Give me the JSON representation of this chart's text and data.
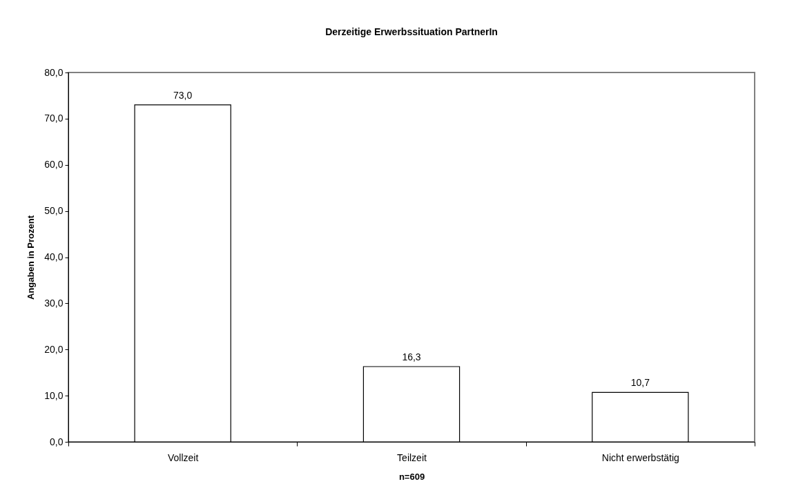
{
  "chart_data": {
    "type": "bar",
    "title": "Derzeitige Erwerbssituation PartnerIn",
    "xlabel": "n=609",
    "ylabel": "Angaben in Prozent",
    "categories": [
      "Vollzeit",
      "Teilzeit",
      "Nicht erwerbstätig"
    ],
    "values": [
      73.0,
      16.3,
      10.7
    ],
    "color": "#ffffff",
    "value_labels": [
      "73,0",
      "16,3",
      "10,7"
    ],
    "ylim": [
      0,
      80
    ],
    "yticks": [
      {
        "value": 0,
        "label": "0,0"
      },
      {
        "value": 10,
        "label": "10,0"
      },
      {
        "value": 20,
        "label": "20,0"
      },
      {
        "value": 30,
        "label": "30,0"
      },
      {
        "value": 40,
        "label": "40,0"
      },
      {
        "value": 50,
        "label": "50,0"
      },
      {
        "value": 60,
        "label": "60,0"
      },
      {
        "value": 70,
        "label": "70,0"
      },
      {
        "value": 80,
        "label": "80,0"
      }
    ]
  }
}
